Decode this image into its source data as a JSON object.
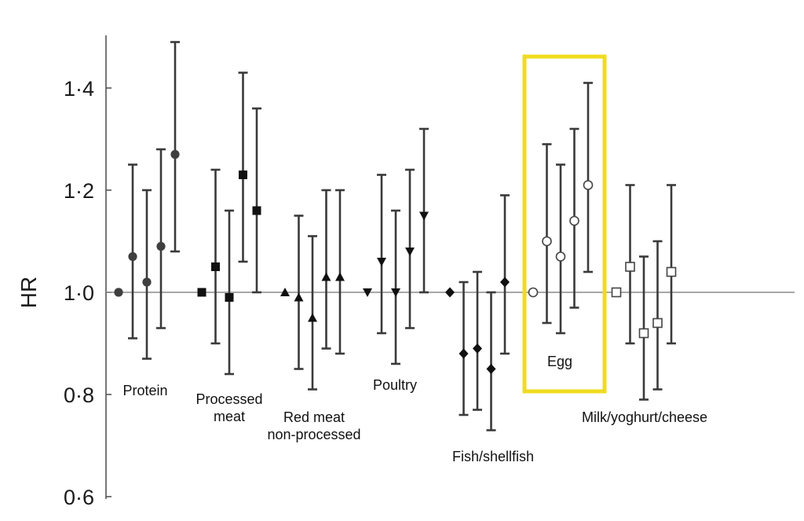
{
  "chart_data": {
    "type": "scatter",
    "ylabel": "HR",
    "xlabel": "",
    "ylim": [
      0.6,
      1.5
    ],
    "yticks": [
      {
        "value": 0.6,
        "label": "0·6"
      },
      {
        "value": 0.8,
        "label": "0·8"
      },
      {
        "value": 1.0,
        "label": "1·0"
      },
      {
        "value": 1.2,
        "label": "1·2"
      },
      {
        "value": 1.4,
        "label": "1·4"
      }
    ],
    "reference_line": 1.0,
    "highlight_group": "Egg",
    "highlight_color": "#f0dc1e",
    "groups": [
      {
        "name": "Protein",
        "label_lines": [
          "Protein"
        ],
        "marker": "circle",
        "points": [
          {
            "hr": 1.0
          },
          {
            "hr": 1.07,
            "lo": 0.91,
            "hi": 1.25
          },
          {
            "hr": 1.02,
            "lo": 0.87,
            "hi": 1.2
          },
          {
            "hr": 1.09,
            "lo": 0.93,
            "hi": 1.28
          },
          {
            "hr": 1.27,
            "lo": 1.08,
            "hi": 1.49
          }
        ]
      },
      {
        "name": "Processed meat",
        "label_lines": [
          "Processed",
          "meat"
        ],
        "marker": "square",
        "points": [
          {
            "hr": 1.0
          },
          {
            "hr": 1.05,
            "lo": 0.9,
            "hi": 1.24
          },
          {
            "hr": 0.99,
            "lo": 0.84,
            "hi": 1.16
          },
          {
            "hr": 1.23,
            "lo": 1.06,
            "hi": 1.43
          },
          {
            "hr": 1.16,
            "lo": 1.0,
            "hi": 1.36
          }
        ]
      },
      {
        "name": "Red meat non-processed",
        "label_lines": [
          "Red meat",
          "non-processed"
        ],
        "marker": "triangle-up",
        "points": [
          {
            "hr": 1.0
          },
          {
            "hr": 0.99,
            "lo": 0.85,
            "hi": 1.15
          },
          {
            "hr": 0.95,
            "lo": 0.81,
            "hi": 1.11
          },
          {
            "hr": 1.03,
            "lo": 0.89,
            "hi": 1.2
          },
          {
            "hr": 1.03,
            "lo": 0.88,
            "hi": 1.2
          }
        ]
      },
      {
        "name": "Poultry",
        "label_lines": [
          "Poultry"
        ],
        "marker": "triangle-down",
        "points": [
          {
            "hr": 1.0
          },
          {
            "hr": 1.06,
            "lo": 0.92,
            "hi": 1.23
          },
          {
            "hr": 1.0,
            "lo": 0.86,
            "hi": 1.16
          },
          {
            "hr": 1.08,
            "lo": 0.93,
            "hi": 1.24
          },
          {
            "hr": 1.15,
            "lo": 1.0,
            "hi": 1.32
          }
        ]
      },
      {
        "name": "Fish/shellfish",
        "label_lines": [
          "Fish/shellfish"
        ],
        "marker": "diamond",
        "points": [
          {
            "hr": 1.0
          },
          {
            "hr": 0.88,
            "lo": 0.76,
            "hi": 1.02
          },
          {
            "hr": 0.89,
            "lo": 0.77,
            "hi": 1.04
          },
          {
            "hr": 0.85,
            "lo": 0.73,
            "hi": 1.0
          },
          {
            "hr": 1.02,
            "lo": 0.88,
            "hi": 1.19
          }
        ]
      },
      {
        "name": "Egg",
        "label_lines": [
          "Egg"
        ],
        "marker": "open-circle",
        "points": [
          {
            "hr": 1.0
          },
          {
            "hr": 1.1,
            "lo": 0.94,
            "hi": 1.29
          },
          {
            "hr": 1.07,
            "lo": 0.92,
            "hi": 1.25
          },
          {
            "hr": 1.14,
            "lo": 0.97,
            "hi": 1.32
          },
          {
            "hr": 1.21,
            "lo": 1.04,
            "hi": 1.41
          }
        ]
      },
      {
        "name": "Milk/yoghurt/cheese",
        "label_lines": [
          "Milk/yoghurt/cheese"
        ],
        "marker": "open-square",
        "points": [
          {
            "hr": 1.0
          },
          {
            "hr": 1.05,
            "lo": 0.9,
            "hi": 1.21
          },
          {
            "hr": 0.92,
            "lo": 0.79,
            "hi": 1.07
          },
          {
            "hr": 0.94,
            "lo": 0.81,
            "hi": 1.1
          },
          {
            "hr": 1.04,
            "lo": 0.9,
            "hi": 1.21
          }
        ]
      }
    ]
  }
}
